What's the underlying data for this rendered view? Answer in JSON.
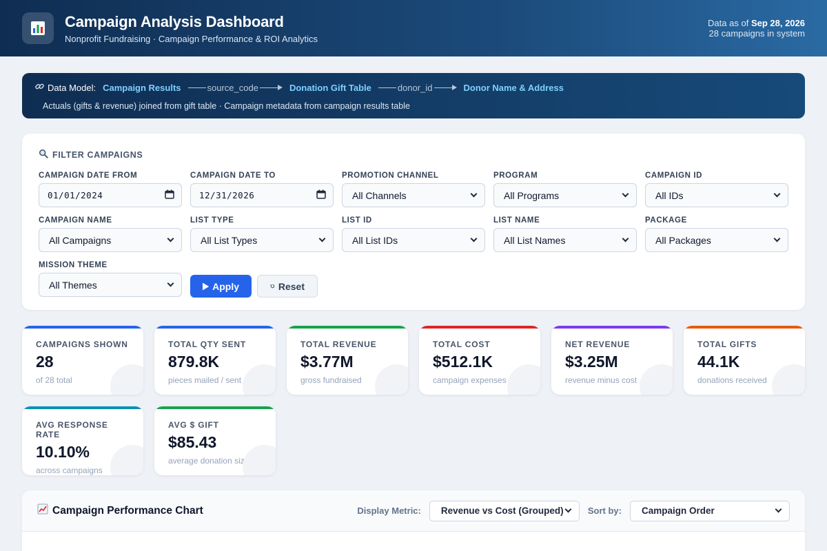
{
  "header": {
    "title": "Campaign Analysis Dashboard",
    "subtitle": "Nonprofit Fundraising · Campaign Performance & ROI Analytics",
    "data_as_of_label": "Data as of",
    "data_as_of_date": "Sep 28, 2026",
    "campaign_count_text": "28 campaigns in system",
    "icon": "bar-chart-icon"
  },
  "data_model": {
    "label": "Data Model:",
    "nodes": [
      "Campaign Results",
      "Donation Gift Table",
      "Donor Name & Address"
    ],
    "edges": [
      "source_code",
      "donor_id"
    ],
    "description": "Actuals (gifts & revenue) joined from gift table · Campaign metadata from campaign results table"
  },
  "filters": {
    "title": "FILTER CAMPAIGNS",
    "fields": [
      {
        "label": "CAMPAIGN DATE FROM",
        "value": "01/01/2024",
        "kind": "date"
      },
      {
        "label": "CAMPAIGN DATE TO",
        "value": "12/31/2026",
        "kind": "date"
      },
      {
        "label": "PROMOTION CHANNEL",
        "value": "All Channels",
        "kind": "select"
      },
      {
        "label": "PROGRAM",
        "value": "All Programs",
        "kind": "select"
      },
      {
        "label": "CAMPAIGN ID",
        "value": "All IDs",
        "kind": "select"
      },
      {
        "label": "CAMPAIGN NAME",
        "value": "All Campaigns",
        "kind": "select"
      },
      {
        "label": "LIST TYPE",
        "value": "All List Types",
        "kind": "select"
      },
      {
        "label": "LIST ID",
        "value": "All List IDs",
        "kind": "select"
      },
      {
        "label": "LIST NAME",
        "value": "All List Names",
        "kind": "select"
      },
      {
        "label": "PACKAGE",
        "value": "All Packages",
        "kind": "select"
      },
      {
        "label": "MISSION THEME",
        "value": "All Themes",
        "kind": "select"
      }
    ],
    "apply_label": "Apply",
    "reset_label": "Reset"
  },
  "kpis": [
    {
      "label": "CAMPAIGNS SHOWN",
      "value": "28",
      "sub": "of 28 total",
      "color": "#2563eb"
    },
    {
      "label": "TOTAL QTY SENT",
      "value": "879.8K",
      "sub": "pieces mailed / sent",
      "color": "#2563eb"
    },
    {
      "label": "TOTAL REVENUE",
      "value": "$3.77M",
      "sub": "gross fundraised",
      "color": "#16a34a"
    },
    {
      "label": "TOTAL COST",
      "value": "$512.1K",
      "sub": "campaign expenses",
      "color": "#dc2626"
    },
    {
      "label": "NET REVENUE",
      "value": "$3.25M",
      "sub": "revenue minus cost",
      "color": "#7c3aed"
    },
    {
      "label": "TOTAL GIFTS",
      "value": "44.1K",
      "sub": "donations received",
      "color": "#ea580c"
    },
    {
      "label": "AVG RESPONSE RATE",
      "value": "10.10%",
      "sub": "across campaigns",
      "color": "#0891b2"
    },
    {
      "label": "AVG $ GIFT",
      "value": "$85.43",
      "sub": "average donation size",
      "color": "#16a34a"
    }
  ],
  "chart_panel": {
    "title": "Campaign Performance Chart",
    "metric_label": "Display Metric:",
    "metric_value": "Revenue vs Cost (Grouped)",
    "sort_label": "Sort by:",
    "sort_value": "Campaign Order"
  }
}
